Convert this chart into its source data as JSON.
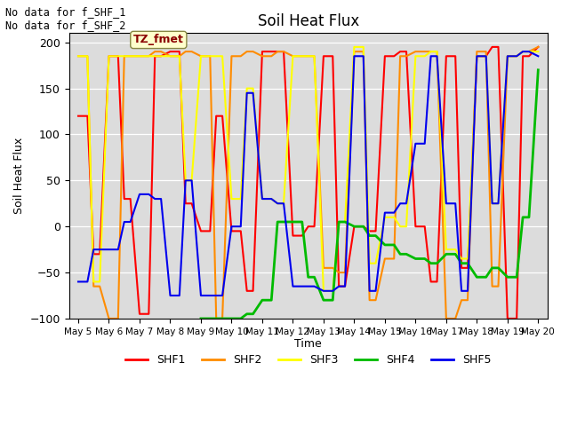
{
  "title": "Soil Heat Flux",
  "xlabel": "Time",
  "ylabel": "Soil Heat Flux",
  "ylim": [
    -100,
    210
  ],
  "background_color": "#dcdcdc",
  "fig_background": "#ffffff",
  "annotation_text": "No data for f_SHF_1\nNo data for f_SHF_2",
  "tz_label": "TZ_fmet",
  "x_tick_labels": [
    "May 5",
    "May 6",
    "May 7",
    "May 8",
    "May 9",
    "May 10",
    "May 11",
    "May 12",
    "May 13",
    "May 14",
    "May 15",
    "May 16",
    "May 17",
    "May 18",
    "May 19",
    "May 20"
  ],
  "legend_colors": {
    "SHF1": "#ff0000",
    "SHF2": "#ff8c00",
    "SHF3": "#ffff00",
    "SHF4": "#00bb00",
    "SHF5": "#0000ee"
  },
  "series": {
    "SHF1": {
      "color": "#ff0000",
      "linewidth": 1.5,
      "x": [
        0,
        0.3,
        0.5,
        0.7,
        1,
        1.3,
        1.5,
        1.7,
        2,
        2.3,
        2.5,
        2.7,
        3,
        3.3,
        3.5,
        3.7,
        4,
        4.3,
        4.5,
        4.7,
        5,
        5.3,
        5.5,
        5.7,
        6,
        6.3,
        6.5,
        6.7,
        7,
        7.3,
        7.5,
        7.7,
        8,
        8.3,
        8.5,
        8.7,
        9,
        9.3,
        9.5,
        9.7,
        10,
        10.3,
        10.5,
        10.7,
        11,
        11.3,
        11.5,
        11.7,
        12,
        12.3,
        12.5,
        12.7,
        13,
        13.3,
        13.5,
        13.7,
        14,
        14.3,
        14.5,
        14.7,
        15
      ],
      "y": [
        120,
        120,
        -30,
        -30,
        185,
        185,
        30,
        30,
        -95,
        -95,
        185,
        185,
        190,
        190,
        25,
        25,
        -5,
        -5,
        120,
        120,
        -5,
        -5,
        -70,
        -70,
        190,
        190,
        190,
        190,
        -10,
        -10,
        0,
        0,
        185,
        185,
        -65,
        -65,
        0,
        0,
        -5,
        -5,
        185,
        185,
        190,
        190,
        0,
        0,
        -60,
        -60,
        185,
        185,
        -45,
        -45,
        185,
        185,
        195,
        195,
        -100,
        -100,
        185,
        185,
        195
      ]
    },
    "SHF2": {
      "color": "#ff8c00",
      "linewidth": 1.5,
      "x": [
        0,
        0.3,
        0.5,
        0.7,
        1,
        1.3,
        1.5,
        1.7,
        2,
        2.3,
        2.5,
        2.7,
        3,
        3.3,
        3.5,
        3.7,
        4,
        4.3,
        4.5,
        4.7,
        5,
        5.3,
        5.5,
        5.7,
        6,
        6.3,
        6.5,
        6.7,
        7,
        7.3,
        7.5,
        7.7,
        8,
        8.3,
        8.5,
        8.7,
        9,
        9.3,
        9.5,
        9.7,
        10,
        10.3,
        10.5,
        10.7,
        11,
        11.3,
        11.5,
        11.7,
        12,
        12.3,
        12.5,
        12.7,
        13,
        13.3,
        13.5,
        13.7,
        14,
        14.3,
        14.5,
        14.7,
        15
      ],
      "y": [
        185,
        185,
        -65,
        -65,
        -100,
        -100,
        185,
        185,
        185,
        185,
        190,
        190,
        185,
        185,
        190,
        190,
        185,
        185,
        -100,
        -100,
        185,
        185,
        190,
        190,
        185,
        185,
        190,
        190,
        185,
        185,
        185,
        185,
        -45,
        -45,
        -50,
        -50,
        190,
        190,
        -80,
        -80,
        -35,
        -35,
        185,
        185,
        190,
        190,
        190,
        190,
        -100,
        -100,
        -80,
        -80,
        190,
        190,
        -65,
        -65,
        185,
        185,
        190,
        190,
        195
      ]
    },
    "SHF3": {
      "color": "#ffff00",
      "linewidth": 1.5,
      "x": [
        0,
        0.3,
        0.5,
        0.7,
        1,
        1.3,
        1.5,
        1.7,
        2,
        2.3,
        2.5,
        2.7,
        3,
        3.3,
        3.5,
        3.7,
        4,
        4.3,
        4.5,
        4.7,
        5,
        5.3,
        5.5,
        5.7,
        6,
        6.3,
        6.5,
        6.7,
        7,
        7.3,
        7.5,
        7.7,
        8,
        8.3,
        8.5,
        8.7,
        9,
        9.3,
        9.5,
        9.7,
        10,
        10.3,
        10.5,
        10.7,
        11,
        11.3,
        11.5,
        11.7,
        12,
        12.3,
        12.5,
        12.7,
        13,
        13.3,
        13.5,
        13.7,
        14,
        14.3,
        14.5,
        14.7,
        15
      ],
      "y": [
        185,
        185,
        -60,
        -60,
        185,
        185,
        185,
        185,
        185,
        185,
        185,
        185,
        185,
        185,
        50,
        50,
        185,
        185,
        185,
        185,
        30,
        30,
        150,
        150,
        30,
        30,
        25,
        25,
        185,
        185,
        185,
        185,
        -70,
        -70,
        5,
        5,
        195,
        195,
        -40,
        -40,
        10,
        10,
        0,
        0,
        185,
        185,
        190,
        190,
        -25,
        -25,
        -35,
        -35,
        185,
        185,
        25,
        25,
        185,
        185,
        190,
        190,
        190
      ]
    },
    "SHF4": {
      "color": "#00bb00",
      "linewidth": 2.0,
      "x": [
        4,
        4.3,
        4.5,
        4.7,
        5,
        5.3,
        5.5,
        5.7,
        6,
        6.3,
        6.5,
        6.7,
        7,
        7.3,
        7.5,
        7.7,
        8,
        8.3,
        8.5,
        8.7,
        9,
        9.3,
        9.5,
        9.7,
        10,
        10.3,
        10.5,
        10.7,
        11,
        11.3,
        11.5,
        11.7,
        12,
        12.3,
        12.5,
        12.7,
        13,
        13.3,
        13.5,
        13.7,
        14,
        14.3,
        14.5,
        14.7,
        15
      ],
      "y": [
        -100,
        -100,
        -100,
        -100,
        -100,
        -100,
        -95,
        -95,
        -80,
        -80,
        5,
        5,
        5,
        5,
        -55,
        -55,
        -80,
        -80,
        5,
        5,
        0,
        0,
        -10,
        -10,
        -20,
        -20,
        -30,
        -30,
        -35,
        -35,
        -40,
        -40,
        -30,
        -30,
        -40,
        -40,
        -55,
        -55,
        -45,
        -45,
        -55,
        -55,
        10,
        10,
        170
      ]
    },
    "SHF5": {
      "color": "#0000ee",
      "linewidth": 1.5,
      "x": [
        0,
        0.3,
        0.5,
        0.7,
        1,
        1.3,
        1.5,
        1.7,
        2,
        2.3,
        2.5,
        2.7,
        3,
        3.3,
        3.5,
        3.7,
        4,
        4.3,
        4.5,
        4.7,
        5,
        5.3,
        5.5,
        5.7,
        6,
        6.3,
        6.5,
        6.7,
        7,
        7.3,
        7.5,
        7.7,
        8,
        8.3,
        8.5,
        8.7,
        9,
        9.3,
        9.5,
        9.7,
        10,
        10.3,
        10.5,
        10.7,
        11,
        11.3,
        11.5,
        11.7,
        12,
        12.3,
        12.5,
        12.7,
        13,
        13.3,
        13.5,
        13.7,
        14,
        14.3,
        14.5,
        14.7,
        15
      ],
      "y": [
        -60,
        -60,
        -25,
        -25,
        -25,
        -25,
        5,
        5,
        35,
        35,
        30,
        30,
        -75,
        -75,
        50,
        50,
        -75,
        -75,
        -75,
        -75,
        0,
        0,
        145,
        145,
        30,
        30,
        25,
        25,
        -65,
        -65,
        -65,
        -65,
        -70,
        -70,
        -65,
        -65,
        185,
        185,
        -70,
        -70,
        15,
        15,
        25,
        25,
        90,
        90,
        185,
        185,
        25,
        25,
        -70,
        -70,
        185,
        185,
        25,
        25,
        185,
        185,
        190,
        190,
        185
      ]
    }
  }
}
